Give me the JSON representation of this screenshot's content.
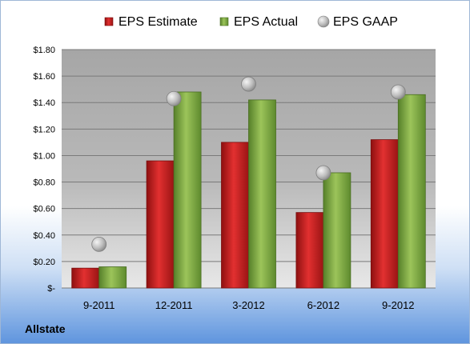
{
  "company": "Allstate",
  "chart_data": {
    "type": "bar",
    "categories": [
      "9-2011",
      "12-2011",
      "3-2012",
      "6-2012",
      "9-2012"
    ],
    "series": [
      {
        "name": "EPS Estimate",
        "kind": "bar",
        "color": "#cc1f1f",
        "values": [
          0.15,
          0.96,
          1.1,
          0.57,
          1.12
        ]
      },
      {
        "name": "EPS Actual",
        "kind": "bar",
        "color": "#7aa63a",
        "values": [
          0.16,
          1.48,
          1.42,
          0.87,
          1.46
        ]
      },
      {
        "name": "EPS GAAP",
        "kind": "point",
        "color": "#b8b8b8",
        "values": [
          0.33,
          1.43,
          1.54,
          0.87,
          1.48
        ]
      }
    ],
    "yticks": [
      "$-",
      "$0.20",
      "$0.40",
      "$0.60",
      "$0.80",
      "$1.00",
      "$1.20",
      "$1.40",
      "$1.60",
      "$1.80"
    ],
    "ylim": [
      0,
      1.8
    ],
    "grid": true,
    "legend": "top"
  }
}
